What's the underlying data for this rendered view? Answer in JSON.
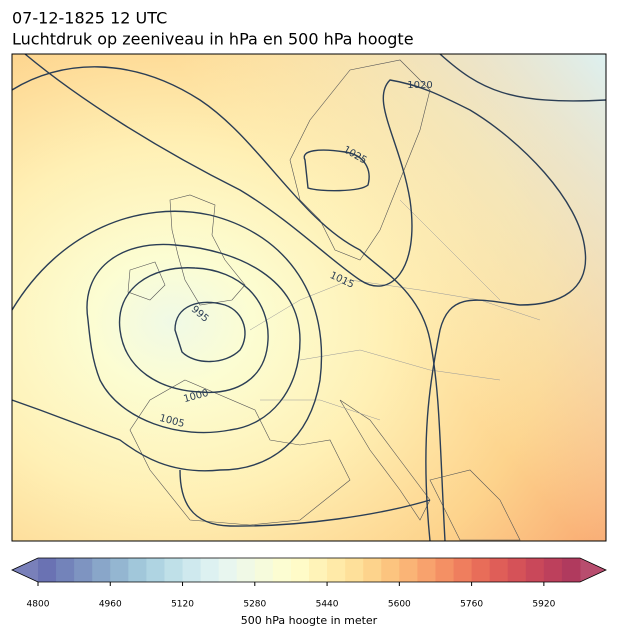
{
  "header": {
    "date": "07-12-1825 12 UTC",
    "title": "Luchtdruk op zeeniveau in hPa en 500 hPa hoogte"
  },
  "map": {
    "isobar_labels": [
      "1020",
      "1025",
      "1015",
      "995",
      "1000",
      "1005"
    ]
  },
  "colorbar": {
    "label": "500 hPa hoogte in meter",
    "lim": [
      4800,
      6000
    ],
    "ticks": [
      4800,
      4960,
      5120,
      5280,
      5440,
      5600,
      5760,
      5920
    ],
    "colors": [
      "#6a72b3",
      "#7383ba",
      "#7e94c1",
      "#89a6c9",
      "#94b6d1",
      "#a1c7da",
      "#afd4e2",
      "#bfe0e8",
      "#cfe9ee",
      "#ddf1f1",
      "#e8f6ef",
      "#f0f9e6",
      "#f6fbdc",
      "#fcfdd2",
      "#fffbc8",
      "#fff3b8",
      "#ffeaa8",
      "#fee09a",
      "#fdd38c",
      "#fcc47f",
      "#fab476",
      "#f8a26d",
      "#f49064",
      "#ef7e5e",
      "#e86d59",
      "#df5e58",
      "#d55258",
      "#c9485a",
      "#bd405c",
      "#b03a5e"
    ]
  }
}
